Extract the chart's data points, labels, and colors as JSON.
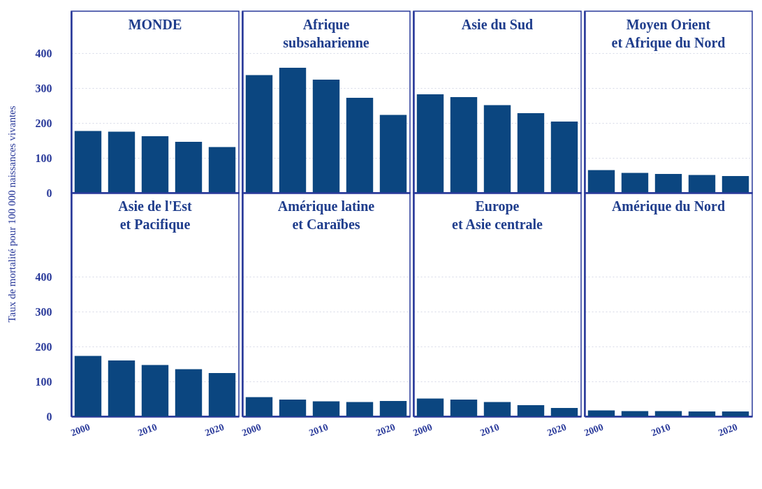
{
  "chart_data": [
    {
      "type": "bar",
      "title": "MONDE",
      "ylabel": "Taux de mortalité pour 100 000 naissances vivantes",
      "categories": [
        "2000",
        null,
        "2010",
        null,
        "2020"
      ],
      "values": [
        177,
        175,
        162,
        146,
        131
      ],
      "color": "#0b4680",
      "ylim": [
        0,
        520
      ],
      "yticks": [
        0,
        100,
        200,
        300,
        400
      ],
      "grid": "y",
      "tick_labels": "y"
    },
    {
      "type": "bar",
      "title": "Afrique\nsubsaharienne",
      "categories": [
        "2000",
        null,
        "2010",
        null,
        "2020"
      ],
      "values": [
        337,
        358,
        324,
        272,
        223
      ],
      "color": "#0b4680",
      "ylim": [
        0,
        520
      ],
      "yticks": [
        0,
        100,
        200,
        300,
        400
      ],
      "grid": "y",
      "tick_labels": false
    },
    {
      "type": "bar",
      "title": "Asie du Sud",
      "categories": [
        "2000",
        null,
        "2010",
        null,
        "2020"
      ],
      "values": [
        282,
        274,
        251,
        228,
        204
      ],
      "color": "#0b4680",
      "ylim": [
        0,
        520
      ],
      "yticks": [
        0,
        100,
        200,
        300,
        400
      ],
      "grid": "y",
      "tick_labels": false
    },
    {
      "type": "bar",
      "title": "Moyen Orient\net Afrique du Nord",
      "categories": [
        "2000",
        null,
        "2010",
        null,
        "2020"
      ],
      "values": [
        65,
        57,
        54,
        51,
        48
      ],
      "color": "#0b4680",
      "ylim": [
        0,
        520
      ],
      "yticks": [
        0,
        100,
        200,
        300,
        400
      ],
      "grid": "y",
      "tick_labels": false
    },
    {
      "type": "bar",
      "title": "Asie de l'Est\net Pacifique",
      "categories": [
        "2000",
        null,
        "2010",
        null,
        "2020"
      ],
      "values": [
        173,
        160,
        147,
        135,
        124
      ],
      "color": "#0b4680",
      "ylim": [
        0,
        640
      ],
      "yticks": [
        0,
        100,
        200,
        300,
        400
      ],
      "grid": "y"
    },
    {
      "type": "bar",
      "title": "Amérique latine\net Caraïbes",
      "categories": [
        "2000",
        null,
        "2010",
        null,
        "2020"
      ],
      "values": [
        55,
        48,
        43,
        41,
        44
      ],
      "color": "#0b4680",
      "ylim": [
        0,
        640
      ],
      "yticks": [
        0,
        100,
        200,
        300,
        400
      ],
      "grid": "y",
      "tick_labels": "x"
    },
    {
      "type": "bar",
      "title": "Europe\net Asie centrale",
      "categories": [
        "2000",
        null,
        "2010",
        null,
        "2020"
      ],
      "values": [
        51,
        48,
        41,
        32,
        24
      ],
      "color": "#0b4680",
      "ylim": [
        0,
        640
      ],
      "yticks": [
        0,
        100,
        200,
        300,
        400
      ],
      "grid": "y",
      "tick_labels": "x"
    },
    {
      "type": "bar",
      "title": "Amérique du Nord",
      "categories": [
        "2000",
        null,
        "2010",
        null,
        "2020"
      ],
      "values": [
        17,
        15,
        15,
        14,
        14
      ],
      "color": "#0b4680",
      "ylim": [
        0,
        640
      ],
      "yticks": [
        0,
        100,
        200,
        300,
        400
      ],
      "grid": "y",
      "tick_labels": "x"
    }
  ]
}
